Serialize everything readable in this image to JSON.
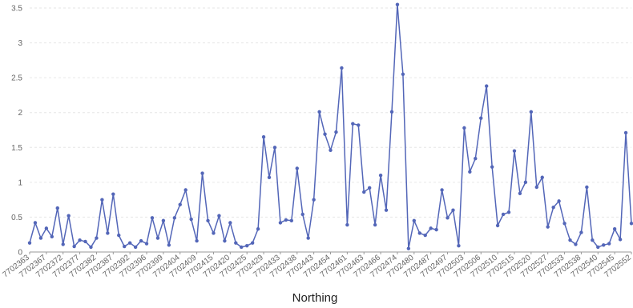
{
  "chart_data": {
    "type": "line",
    "title": "",
    "xlabel": "Northing",
    "ylabel": "",
    "ylim": [
      0,
      3.5
    ],
    "y_ticks": [
      "0",
      "0.5",
      "1",
      "1.5",
      "2",
      "2.5",
      "3",
      "3.5"
    ],
    "grid": true,
    "legend": "none",
    "x_tick_labels": [
      "7702363",
      "7702367",
      "7702372",
      "7702377",
      "7702382",
      "7702387",
      "7702392",
      "7702396",
      "7702399",
      "7702404",
      "7702409",
      "7702415",
      "7702420",
      "7702425",
      "7702429",
      "7702433",
      "7702438",
      "7702443",
      "7702454",
      "7702461",
      "7702463",
      "7702466",
      "7702474",
      "7702480",
      "7702487",
      "7702497",
      "7702503",
      "7702506",
      "7702510",
      "7702515",
      "7702520",
      "7702527",
      "7702533",
      "7702538",
      "7702540",
      "7702545",
      "7702552"
    ],
    "series": [
      {
        "color": "#5366b8",
        "values": [
          0.13,
          0.42,
          0.2,
          0.34,
          0.22,
          0.63,
          0.11,
          0.52,
          0.08,
          0.17,
          0.15,
          0.07,
          0.2,
          0.75,
          0.27,
          0.83,
          0.24,
          0.08,
          0.13,
          0.07,
          0.16,
          0.12,
          0.49,
          0.2,
          0.45,
          0.1,
          0.49,
          0.68,
          0.89,
          0.47,
          0.16,
          1.13,
          0.45,
          0.27,
          0.52,
          0.16,
          0.42,
          0.13,
          0.07,
          0.09,
          0.13,
          0.33,
          1.65,
          1.07,
          1.5,
          0.42,
          0.46,
          0.45,
          1.2,
          0.54,
          0.2,
          0.75,
          2.01,
          1.69,
          1.46,
          1.72,
          2.64,
          0.39,
          1.84,
          1.82,
          0.86,
          0.92,
          0.39,
          1.1,
          0.6,
          2.01,
          3.55,
          2.55,
          0.05,
          0.45,
          0.27,
          0.24,
          0.34,
          0.32,
          0.89,
          0.49,
          0.6,
          0.09,
          1.78,
          1.15,
          1.34,
          1.92,
          2.38,
          1.22,
          0.38,
          0.54,
          0.57,
          1.45,
          0.84,
          1.0,
          2.01,
          0.93,
          1.07,
          0.36,
          0.64,
          0.73,
          0.41,
          0.17,
          0.11,
          0.28,
          0.93,
          0.17,
          0.07,
          0.1,
          0.12,
          0.33,
          0.18,
          1.71,
          0.41
        ]
      }
    ]
  }
}
